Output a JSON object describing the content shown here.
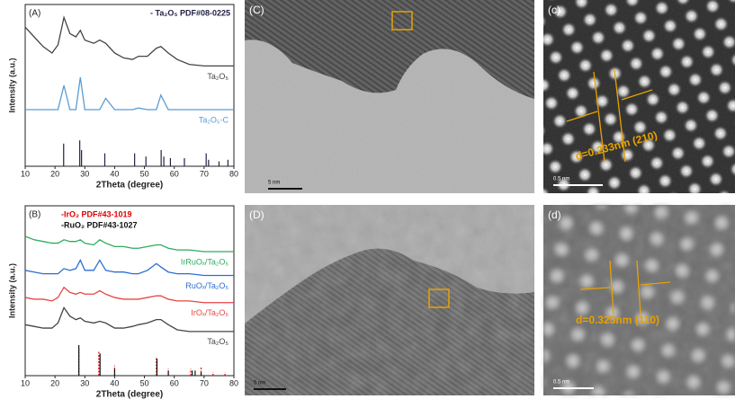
{
  "chart_data": [
    {
      "type": "line",
      "panel_label": "(A)",
      "xlabel": "2Theta (degree)",
      "ylabel": "Intensity (a.u.)",
      "x": [
        10,
        13,
        16,
        19,
        21,
        23,
        25,
        27,
        28.5,
        30,
        33,
        35,
        37,
        40,
        43,
        46,
        48,
        51,
        54,
        55.5,
        58,
        61,
        65,
        70,
        75,
        80
      ],
      "xlim": [
        10,
        80
      ],
      "xticks": [
        10,
        20,
        30,
        40,
        50,
        60,
        70,
        80
      ],
      "ylim": [
        0,
        100
      ],
      "legend": "upper right",
      "series": [
        {
          "name": "Ta₂O₅",
          "color": "#444444",
          "values": [
            86,
            80,
            74,
            70,
            75,
            92,
            82,
            80,
            84,
            78,
            76,
            78,
            76,
            70,
            67,
            66,
            68,
            68,
            73,
            74,
            70,
            66,
            63,
            62,
            62,
            62
          ]
        },
        {
          "name": "Ta₂O₅-C",
          "color": "#5b9bd5",
          "values": [
            35,
            35,
            35,
            35,
            35,
            50,
            35,
            35,
            55,
            35,
            35,
            35,
            42,
            35,
            35,
            35,
            36,
            35,
            35,
            44,
            35,
            35,
            35,
            35,
            35,
            35
          ]
        }
      ],
      "references": [
        {
          "name": "- Ta₂O₅ PDF#08-0225",
          "color": "#222244",
          "style": "solid",
          "x": [
            22.9,
            28.3,
            28.9,
            36.7,
            46.7,
            50.5,
            55.6,
            56.5,
            58.7,
            63.4,
            70.7,
            71.5,
            75,
            78
          ],
          "values": [
            14,
            16,
            10,
            8,
            8,
            6,
            10,
            6,
            5,
            5,
            8,
            4,
            3,
            4
          ]
        }
      ]
    },
    {
      "type": "line",
      "panel_label": "(B)",
      "xlabel": "2Theta (degree)",
      "ylabel": "Intensity (a.u.)",
      "x": [
        10,
        13,
        16,
        19,
        21,
        23,
        25,
        27,
        28.5,
        30,
        33,
        35,
        37,
        40,
        43,
        46,
        48,
        51,
        54,
        55.5,
        58,
        61,
        65,
        70,
        75,
        80
      ],
      "xlim": [
        10,
        80
      ],
      "xticks": [
        10,
        20,
        30,
        40,
        50,
        60,
        70,
        80
      ],
      "ylim": [
        0,
        100
      ],
      "legend": "upper left",
      "series": [
        {
          "name": "IrRuOₓ/Ta₂O₅",
          "color": "#2daa5f",
          "values": [
            82,
            80,
            79,
            78,
            78,
            80,
            79,
            79,
            80,
            78,
            77,
            80,
            78,
            76,
            76,
            75,
            75,
            76,
            77,
            77,
            75,
            74,
            74,
            73,
            73,
            73
          ]
        },
        {
          "name": "RuOₓ/Ta₂O₅",
          "color": "#2b6fd1",
          "values": [
            62,
            61,
            60,
            60,
            60,
            63,
            62,
            63,
            68,
            62,
            62,
            68,
            62,
            61,
            61,
            60,
            60,
            62,
            66,
            64,
            61,
            60,
            60,
            59,
            59,
            59
          ]
        },
        {
          "name": "IrOₓ/Ta₂O₅",
          "color": "#e84545",
          "values": [
            46,
            45,
            45,
            44,
            46,
            52,
            49,
            48,
            49,
            48,
            48,
            50,
            48,
            46,
            45,
            45,
            45,
            46,
            47,
            47,
            45,
            44,
            44,
            43,
            43,
            43
          ]
        },
        {
          "name": "Ta₂O₅",
          "color": "#444444",
          "values": [
            30,
            29,
            28,
            28,
            31,
            40,
            35,
            33,
            34,
            32,
            31,
            32,
            31,
            28,
            28,
            29,
            30,
            31,
            33,
            33,
            30,
            27,
            26,
            26,
            26,
            26
          ]
        }
      ],
      "references": [
        {
          "name": "-IrO₂  PDF#43-1019",
          "color": "#e00000",
          "style": "dashed",
          "x": [
            28,
            34.7,
            40,
            54,
            58,
            65.5,
            69,
            73,
            77
          ],
          "values": [
            16,
            14,
            6,
            11,
            4,
            4,
            5,
            2,
            2
          ]
        },
        {
          "name": "-RuO₂ PDF#43-1027",
          "color": "#111111",
          "style": "solid",
          "x": [
            28,
            35.1,
            40,
            54.2,
            58,
            66,
            67,
            69
          ],
          "values": [
            18,
            13,
            4,
            10,
            3,
            3,
            3,
            2
          ]
        }
      ]
    }
  ],
  "images": [
    {
      "label": "(C)",
      "scale_bar": "5 nm"
    },
    {
      "label": "(c)",
      "scale_bar": "0.5 nm",
      "annotation": "d=0.233nm  (210)"
    },
    {
      "label": "(D)",
      "scale_bar": "5 nm"
    },
    {
      "label": "(d)",
      "scale_bar": "0.5 nm",
      "annotation": "d=0.325nm  (110)"
    }
  ]
}
